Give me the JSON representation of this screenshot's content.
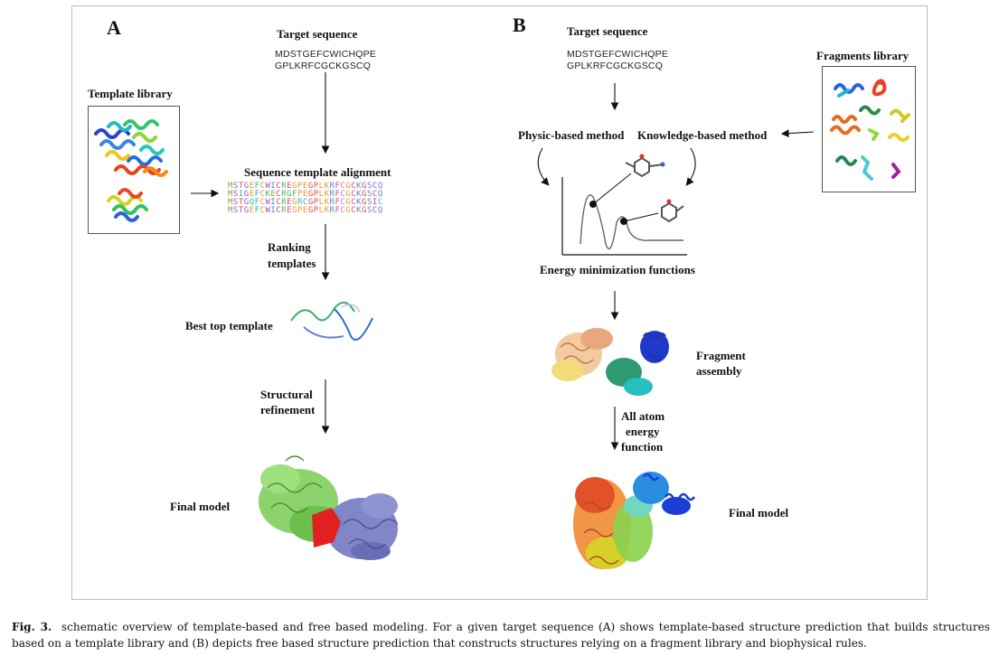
{
  "panel_a": {
    "letter": "A",
    "target_title": "Target sequence",
    "target_line1": "MDSTGEFCWICHQPE",
    "target_line2": "GPLKRFCGCKGSCQ",
    "template_library": "Template library",
    "alignment_title": "Sequence template alignment",
    "alignment_rows": [
      "MSTGEFCWICREGPEGPLKRFCGCKGSCQ",
      "MSIGEFCKECRGFPEGPLKRFCGCKGSCQ",
      "MSTGQFCWICREGRCGPLKRFCGCKGSIC",
      "MSTGEFCWICREGPEGPLKRFCGCKGSCQ"
    ],
    "ranking_line1": "Ranking",
    "ranking_line2": "templates",
    "best_top": "Best top template",
    "refinement_line1": "Structural",
    "refinement_line2": "refinement",
    "final_model": "Final model"
  },
  "panel_b": {
    "letter": "B",
    "target_title": "Target sequence",
    "target_line1": "MDSTGEFCWICHQPE",
    "target_line2": "GPLKRFCGCKGSCQ",
    "fragments_library": "Fragments library",
    "physic_method": "Physic-based method",
    "knowledge_method": "Knowledge-based method",
    "energy_functions": "Energy minimization functions",
    "fragment_assembly_line1": "Fragment",
    "fragment_assembly_line2": "assembly",
    "all_atom_line1": "All atom",
    "all_atom_line2": "energy",
    "all_atom_line3": "function",
    "final_model": "Final model"
  },
  "caption": {
    "label": "Fig. 3.",
    "text": "schematic overview of template-based and free based modeling. For a given target sequence (A) shows template-based structure prediction that builds structures based on a template library and (B) depicts free based structure prediction that constructs structures relying on a fragment library and biophysical rules."
  },
  "colors": {
    "frame": "#bdbdbd",
    "arrow": "#111111",
    "green_model": "#7fce5e",
    "red_region": "#e32020",
    "purple_model": "#7a7fc4"
  }
}
